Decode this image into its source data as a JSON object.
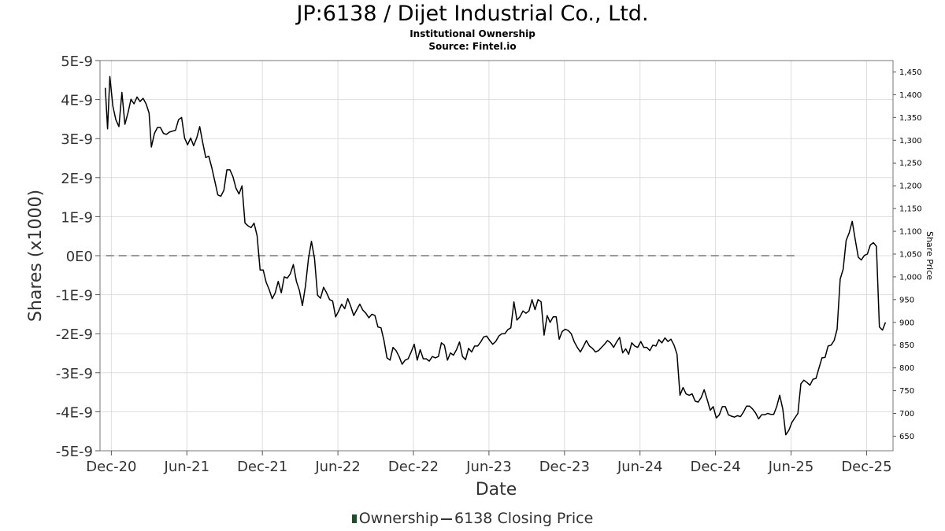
{
  "title": "JP:6138 / Dijet Industrial Co., Ltd.",
  "subtitle": "Institutional Ownership",
  "source": "Source: Fintel.io",
  "legend": {
    "ownership": "Ownership",
    "price": "6138 Closing Price"
  },
  "colors": {
    "ownership": "#1f4e2a",
    "price": "#000000",
    "zero_line": "#999999",
    "grid": "#dddddd"
  },
  "chart_data": {
    "type": "line",
    "xlabel": "Date",
    "ylabel": "Shares (x1000)",
    "y2label": "Share Price",
    "x_ticks": [
      "Dec-20",
      "Jun-21",
      "Dec-21",
      "Jun-22",
      "Dec-22",
      "Jun-23",
      "Dec-23",
      "Jun-24",
      "Dec-24",
      "Jun-25",
      "Dec-25"
    ],
    "x_range": [
      -0.15,
      10.35
    ],
    "y_ticks": [
      "5E-9",
      "4E-9",
      "3E-9",
      "2E-9",
      "1E-9",
      "0E0",
      "-1E-9",
      "-2E-9",
      "-3E-9",
      "-4E-9",
      "-5E-9"
    ],
    "y_range": [
      -5e-09,
      5e-09
    ],
    "y2_ticks": [
      650,
      700,
      750,
      800,
      850,
      900,
      950,
      1000,
      1050,
      1100,
      1150,
      1200,
      1250,
      1300,
      1350,
      1400,
      1450
    ],
    "y2_range": [
      618,
      1475
    ],
    "series": [
      {
        "name": "Ownership",
        "axis": "left",
        "style": "dashed",
        "points": [
          [
            -0.07,
            0
          ],
          [
            9.05,
            0
          ]
        ]
      },
      {
        "name": "6138 Closing Price",
        "axis": "right",
        "style": "solid",
        "points": [
          [
            -0.08,
            1415
          ],
          [
            -0.05,
            1325
          ],
          [
            -0.02,
            1440
          ],
          [
            0.02,
            1375
          ],
          [
            0.06,
            1345
          ],
          [
            0.1,
            1330
          ],
          [
            0.14,
            1405
          ],
          [
            0.18,
            1335
          ],
          [
            0.22,
            1360
          ],
          [
            0.26,
            1390
          ],
          [
            0.3,
            1380
          ],
          [
            0.34,
            1395
          ],
          [
            0.38,
            1385
          ],
          [
            0.42,
            1392
          ],
          [
            0.46,
            1380
          ],
          [
            0.5,
            1360
          ],
          [
            0.53,
            1285
          ],
          [
            0.57,
            1315
          ],
          [
            0.61,
            1328
          ],
          [
            0.65,
            1328
          ],
          [
            0.69,
            1315
          ],
          [
            0.73,
            1313
          ],
          [
            0.77,
            1318
          ],
          [
            0.81,
            1320
          ],
          [
            0.85,
            1322
          ],
          [
            0.89,
            1345
          ],
          [
            0.93,
            1350
          ],
          [
            0.97,
            1305
          ],
          [
            1.01,
            1290
          ],
          [
            1.05,
            1305
          ],
          [
            1.09,
            1288
          ],
          [
            1.13,
            1305
          ],
          [
            1.17,
            1330
          ],
          [
            1.21,
            1295
          ],
          [
            1.25,
            1262
          ],
          [
            1.29,
            1265
          ],
          [
            1.33,
            1240
          ],
          [
            1.37,
            1210
          ],
          [
            1.41,
            1180
          ],
          [
            1.45,
            1177
          ],
          [
            1.49,
            1190
          ],
          [
            1.53,
            1235
          ],
          [
            1.57,
            1235
          ],
          [
            1.61,
            1220
          ],
          [
            1.65,
            1195
          ],
          [
            1.69,
            1182
          ],
          [
            1.73,
            1200
          ],
          [
            1.77,
            1118
          ],
          [
            1.81,
            1112
          ],
          [
            1.85,
            1108
          ],
          [
            1.89,
            1118
          ],
          [
            1.93,
            1090
          ],
          [
            1.97,
            1015
          ],
          [
            2.01,
            1015
          ],
          [
            2.05,
            988
          ],
          [
            2.09,
            972
          ],
          [
            2.13,
            952
          ],
          [
            2.17,
            965
          ],
          [
            2.21,
            990
          ],
          [
            2.25,
            965
          ],
          [
            2.29,
            1000
          ],
          [
            2.33,
            997
          ],
          [
            2.37,
            1007
          ],
          [
            2.41,
            1027
          ],
          [
            2.45,
            990
          ],
          [
            2.49,
            970
          ],
          [
            2.53,
            937
          ],
          [
            2.57,
            980
          ],
          [
            2.61,
            1040
          ],
          [
            2.65,
            1078
          ],
          [
            2.69,
            1040
          ],
          [
            2.73,
            960
          ],
          [
            2.77,
            953
          ],
          [
            2.81,
            977
          ],
          [
            2.85,
            965
          ],
          [
            2.89,
            950
          ],
          [
            2.93,
            947
          ],
          [
            2.97,
            912
          ],
          [
            3.01,
            925
          ],
          [
            3.05,
            940
          ],
          [
            3.09,
            930
          ],
          [
            3.13,
            952
          ],
          [
            3.17,
            935
          ],
          [
            3.21,
            915
          ],
          [
            3.25,
            928
          ],
          [
            3.29,
            940
          ],
          [
            3.33,
            927
          ],
          [
            3.37,
            920
          ],
          [
            3.41,
            910
          ],
          [
            3.45,
            918
          ],
          [
            3.49,
            915
          ],
          [
            3.53,
            890
          ],
          [
            3.57,
            888
          ],
          [
            3.61,
            860
          ],
          [
            3.65,
            822
          ],
          [
            3.69,
            817
          ],
          [
            3.73,
            845
          ],
          [
            3.77,
            838
          ],
          [
            3.81,
            825
          ],
          [
            3.85,
            808
          ],
          [
            3.89,
            817
          ],
          [
            3.93,
            820
          ],
          [
            3.97,
            835
          ],
          [
            4.01,
            852
          ],
          [
            4.05,
            817
          ],
          [
            4.09,
            840
          ],
          [
            4.13,
            820
          ],
          [
            4.17,
            820
          ],
          [
            4.21,
            815
          ],
          [
            4.25,
            825
          ],
          [
            4.29,
            822
          ],
          [
            4.33,
            825
          ],
          [
            4.37,
            855
          ],
          [
            4.41,
            850
          ],
          [
            4.45,
            817
          ],
          [
            4.49,
            833
          ],
          [
            4.53,
            828
          ],
          [
            4.57,
            840
          ],
          [
            4.61,
            857
          ],
          [
            4.65,
            825
          ],
          [
            4.69,
            818
          ],
          [
            4.73,
            843
          ],
          [
            4.77,
            835
          ],
          [
            4.81,
            848
          ],
          [
            4.85,
            848
          ],
          [
            4.89,
            857
          ],
          [
            4.93,
            868
          ],
          [
            4.97,
            870
          ],
          [
            5.01,
            860
          ],
          [
            5.05,
            852
          ],
          [
            5.09,
            858
          ],
          [
            5.13,
            870
          ],
          [
            5.17,
            875
          ],
          [
            5.21,
            875
          ],
          [
            5.25,
            884
          ],
          [
            5.29,
            888
          ],
          [
            5.33,
            945
          ],
          [
            5.37,
            905
          ],
          [
            5.41,
            912
          ],
          [
            5.45,
            925
          ],
          [
            5.49,
            920
          ],
          [
            5.53,
            925
          ],
          [
            5.57,
            950
          ],
          [
            5.61,
            928
          ],
          [
            5.65,
            950
          ],
          [
            5.69,
            945
          ],
          [
            5.73,
            872
          ],
          [
            5.77,
            915
          ],
          [
            5.81,
            900
          ],
          [
            5.85,
            912
          ],
          [
            5.89,
            912
          ],
          [
            5.93,
            863
          ],
          [
            5.97,
            880
          ],
          [
            6.01,
            885
          ],
          [
            6.05,
            882
          ],
          [
            6.09,
            875
          ],
          [
            6.13,
            857
          ],
          [
            6.17,
            845
          ],
          [
            6.21,
            835
          ],
          [
            6.25,
            847
          ],
          [
            6.29,
            860
          ],
          [
            6.33,
            848
          ],
          [
            6.37,
            843
          ],
          [
            6.41,
            835
          ],
          [
            6.45,
            838
          ],
          [
            6.49,
            845
          ],
          [
            6.53,
            852
          ],
          [
            6.57,
            860
          ],
          [
            6.61,
            855
          ],
          [
            6.65,
            845
          ],
          [
            6.69,
            857
          ],
          [
            6.73,
            867
          ],
          [
            6.77,
            833
          ],
          [
            6.81,
            842
          ],
          [
            6.85,
            830
          ],
          [
            6.89,
            855
          ],
          [
            6.93,
            848
          ],
          [
            6.97,
            845
          ],
          [
            7.01,
            858
          ],
          [
            7.05,
            845
          ],
          [
            7.09,
            845
          ],
          [
            7.13,
            838
          ],
          [
            7.17,
            850
          ],
          [
            7.21,
            848
          ],
          [
            7.25,
            862
          ],
          [
            7.29,
            855
          ],
          [
            7.33,
            866
          ],
          [
            7.37,
            858
          ],
          [
            7.41,
            863
          ],
          [
            7.45,
            850
          ],
          [
            7.49,
            830
          ],
          [
            7.53,
            740
          ],
          [
            7.57,
            757
          ],
          [
            7.61,
            743
          ],
          [
            7.65,
            740
          ],
          [
            7.69,
            743
          ],
          [
            7.73,
            727
          ],
          [
            7.77,
            725
          ],
          [
            7.81,
            735
          ],
          [
            7.85,
            752
          ],
          [
            7.89,
            730
          ],
          [
            7.93,
            707
          ],
          [
            7.97,
            715
          ],
          [
            8.01,
            690
          ],
          [
            8.05,
            697
          ],
          [
            8.09,
            715
          ],
          [
            8.13,
            715
          ],
          [
            8.17,
            697
          ],
          [
            8.21,
            694
          ],
          [
            8.25,
            692
          ],
          [
            8.29,
            695
          ],
          [
            8.33,
            693
          ],
          [
            8.37,
            703
          ],
          [
            8.41,
            716
          ],
          [
            8.45,
            716
          ],
          [
            8.49,
            710
          ],
          [
            8.53,
            701
          ],
          [
            8.57,
            688
          ],
          [
            8.61,
            697
          ],
          [
            8.65,
            697
          ],
          [
            8.69,
            700
          ],
          [
            8.73,
            698
          ],
          [
            8.77,
            698
          ],
          [
            8.81,
            715
          ],
          [
            8.85,
            740
          ],
          [
            8.89,
            710
          ],
          [
            8.93,
            653
          ],
          [
            8.97,
            663
          ],
          [
            9.01,
            680
          ],
          [
            9.05,
            690
          ],
          [
            9.09,
            700
          ],
          [
            9.13,
            765
          ],
          [
            9.17,
            773
          ],
          [
            9.21,
            768
          ],
          [
            9.25,
            762
          ],
          [
            9.29,
            775
          ],
          [
            9.33,
            777
          ],
          [
            9.37,
            800
          ],
          [
            9.41,
            822
          ],
          [
            9.45,
            823
          ],
          [
            9.49,
            848
          ],
          [
            9.53,
            850
          ],
          [
            9.57,
            860
          ],
          [
            9.61,
            885
          ],
          [
            9.65,
            995
          ],
          [
            9.69,
            1017
          ],
          [
            9.73,
            1080
          ],
          [
            9.77,
            1097
          ],
          [
            9.81,
            1122
          ],
          [
            9.85,
            1082
          ],
          [
            9.89,
            1043
          ],
          [
            9.93,
            1037
          ],
          [
            9.97,
            1047
          ],
          [
            10.01,
            1050
          ],
          [
            10.05,
            1070
          ],
          [
            10.09,
            1075
          ],
          [
            10.13,
            1067
          ],
          [
            10.17,
            890
          ],
          [
            10.21,
            883
          ],
          [
            10.25,
            900
          ]
        ]
      }
    ]
  }
}
